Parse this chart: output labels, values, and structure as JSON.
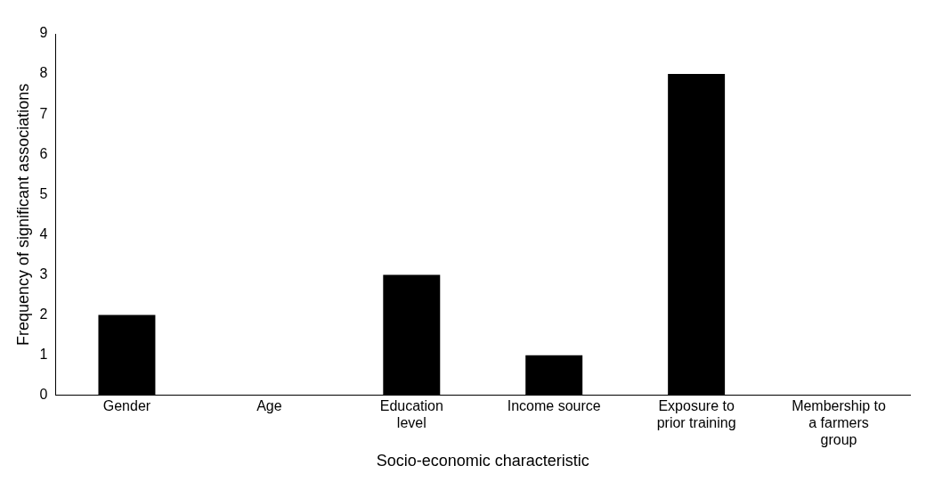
{
  "chart_data": {
    "type": "bar",
    "xlabel": "Socio-economic characteristic",
    "ylabel": "Frequency of significant associations",
    "categories": [
      "Gender",
      "Age",
      "Education level",
      "Income source",
      "Exposure to prior training",
      "Membership to a farmers group"
    ],
    "values": [
      2,
      0,
      3,
      1,
      8,
      0
    ],
    "color": "#000000",
    "ylim": [
      0,
      9
    ],
    "yticks": [
      0,
      1,
      2,
      3,
      4,
      5,
      6,
      7,
      8,
      9
    ],
    "grid": false,
    "legend": false
  }
}
